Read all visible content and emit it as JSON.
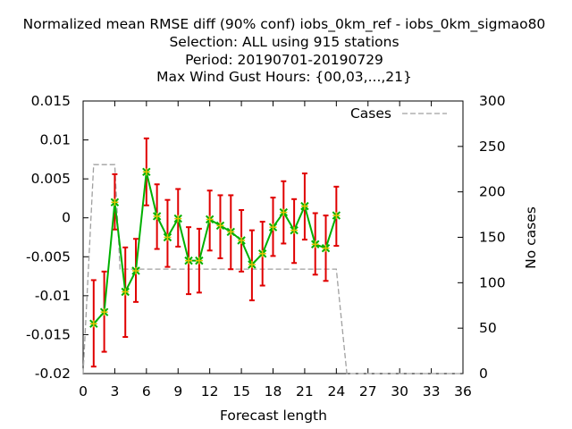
{
  "chart_data": {
    "type": "line",
    "title_lines": [
      "Normalized mean RMSE diff (90% conf) iobs_0km_ref - iobs_0km_sigmao80",
      "Selection: ALL using   915 stations",
      "Period: 20190701-20190729",
      "Max Wind Gust   Hours: {00,03,...,21}"
    ],
    "xlabel": "Forecast length",
    "ylabel_right": "No cases",
    "xlim": [
      0,
      36
    ],
    "ylim": [
      -0.02,
      0.015
    ],
    "ylim_right": [
      0,
      300
    ],
    "x_ticks": [
      0,
      3,
      6,
      9,
      12,
      15,
      18,
      21,
      24,
      27,
      30,
      33,
      36
    ],
    "y_ticks": [
      -0.02,
      -0.015,
      -0.01,
      -0.005,
      0,
      0.005,
      0.01,
      0.015
    ],
    "y_tick_labels": [
      "-0.02",
      "-0.015",
      "-0.01",
      "-0.005",
      "0",
      "0.005",
      "0.01",
      "0.015"
    ],
    "y2_ticks": [
      0,
      50,
      100,
      150,
      200,
      250,
      300
    ],
    "legend": {
      "label": "Cases",
      "position": "top-right"
    },
    "grid": false,
    "series": [
      {
        "kind": "error_line",
        "color": "#00b000",
        "marker_color": "#e0c000",
        "error_color": "#e00000",
        "x": [
          1,
          2,
          3,
          4,
          5,
          6,
          7,
          8,
          9,
          10,
          11,
          12,
          13,
          14,
          15,
          16,
          17,
          18,
          19,
          20,
          21,
          22,
          23,
          24
        ],
        "y": [
          -0.0136,
          -0.0121,
          0.002,
          -0.0095,
          -0.0068,
          0.0059,
          0.0002,
          -0.0025,
          -0.0001,
          -0.0055,
          -0.0055,
          -0.0002,
          -0.001,
          -0.0018,
          -0.0029,
          -0.006,
          -0.0046,
          -0.0012,
          0.0007,
          -0.0016,
          0.0015,
          -0.0034,
          -0.0039,
          0.0003
        ],
        "y_low": [
          -0.0191,
          -0.0172,
          -0.0015,
          -0.0153,
          -0.0108,
          0.0016,
          -0.004,
          -0.0063,
          -0.0037,
          -0.0098,
          -0.0096,
          -0.0042,
          -0.0052,
          -0.0066,
          -0.0069,
          -0.0106,
          -0.0087,
          -0.0049,
          -0.0033,
          -0.0058,
          -0.0028,
          -0.0073,
          -0.0081,
          -0.0036
        ],
        "y_high": [
          -0.008,
          -0.0069,
          0.0056,
          -0.0038,
          -0.0027,
          0.0102,
          0.0043,
          0.0023,
          0.0037,
          -0.0012,
          -0.0014,
          0.0035,
          0.0029,
          0.0029,
          0.001,
          -0.0016,
          -0.0005,
          0.0026,
          0.0047,
          0.0024,
          0.0057,
          0.0006,
          0.0003,
          0.004
        ]
      },
      {
        "name": "Cases",
        "kind": "cases_line",
        "axis": "right",
        "color": "#a0a0a0",
        "x": [
          0,
          1,
          2,
          3,
          3.5,
          4,
          5,
          6,
          7,
          8,
          9,
          10,
          11,
          12,
          13,
          14,
          15,
          16,
          17,
          18,
          19,
          20,
          21,
          22,
          23,
          24,
          25,
          26,
          27,
          28,
          29,
          30,
          31,
          32,
          33,
          34,
          35,
          36
        ],
        "y": [
          0,
          230,
          230,
          230,
          115,
          115,
          115,
          115,
          115,
          115,
          115,
          115,
          115,
          115,
          115,
          115,
          115,
          115,
          115,
          115,
          115,
          115,
          115,
          115,
          115,
          115,
          0,
          0,
          0,
          0,
          0,
          0,
          0,
          0,
          0,
          0,
          0,
          0
        ]
      }
    ]
  }
}
